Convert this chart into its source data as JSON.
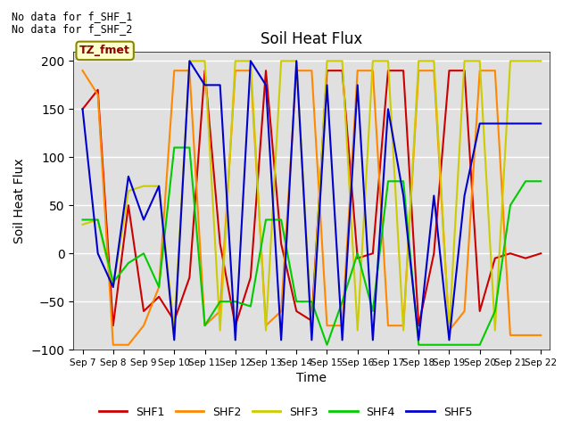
{
  "title": "Soil Heat Flux",
  "xlabel": "Time",
  "ylabel": "Soil Heat Flux",
  "ylim": [
    -100,
    210
  ],
  "background_color": "#e0e0e0",
  "note1": "No data for f_SHF_1",
  "note2": "No data for f_SHF_2",
  "tz_label": "TZ_fmet",
  "series": {
    "SHF1": {
      "color": "#cc0000",
      "x": [
        0,
        0.5,
        1,
        1.5,
        2,
        2.5,
        3,
        3.5,
        4,
        4.5,
        5,
        5.5,
        6,
        6.5,
        7,
        7.5,
        8,
        8.5,
        9,
        9.5,
        10,
        10.5,
        11,
        11.5,
        12,
        12.5,
        13,
        13.5,
        14,
        14.5,
        15
      ],
      "y": [
        150,
        170,
        -75,
        50,
        -60,
        -45,
        -70,
        -25,
        190,
        10,
        -75,
        -25,
        190,
        10,
        -60,
        -70,
        190,
        190,
        -5,
        0,
        190,
        190,
        -75,
        0,
        190,
        190,
        -60,
        -5,
        0,
        -5,
        0
      ]
    },
    "SHF2": {
      "color": "#ff8800",
      "x": [
        0,
        0.5,
        1,
        1.5,
        2,
        2.5,
        3,
        3.5,
        4,
        4.5,
        5,
        5.5,
        6,
        6.5,
        7,
        7.5,
        8,
        8.5,
        9,
        9.5,
        10,
        10.5,
        11,
        11.5,
        12,
        12.5,
        13,
        13.5,
        14,
        14.5,
        15
      ],
      "y": [
        190,
        165,
        -95,
        -95,
        -75,
        -35,
        190,
        190,
        -75,
        -60,
        190,
        190,
        -75,
        -60,
        190,
        190,
        -75,
        -75,
        190,
        190,
        -75,
        -75,
        190,
        190,
        -80,
        -60,
        190,
        190,
        -85,
        -85,
        -85
      ]
    },
    "SHF3": {
      "color": "#cccc00",
      "x": [
        0,
        0.5,
        1,
        1.5,
        2,
        2.5,
        3,
        3.5,
        4,
        4.5,
        5,
        5.5,
        6,
        6.5,
        7,
        7.5,
        8,
        8.5,
        9,
        9.5,
        10,
        10.5,
        11,
        11.5,
        12,
        12.5,
        13,
        13.5,
        14,
        14.5,
        15
      ],
      "y": [
        30,
        35,
        -35,
        65,
        70,
        70,
        -80,
        200,
        200,
        -80,
        200,
        200,
        -80,
        200,
        200,
        -80,
        200,
        200,
        -80,
        200,
        200,
        -80,
        200,
        200,
        -80,
        200,
        200,
        -80,
        200,
        200,
        200
      ]
    },
    "SHF4": {
      "color": "#00cc00",
      "x": [
        0,
        0.5,
        1,
        1.5,
        2,
        2.5,
        3,
        3.5,
        4,
        4.5,
        5,
        5.5,
        6,
        6.5,
        7,
        7.5,
        8,
        8.5,
        9,
        9.5,
        10,
        10.5,
        11,
        11.5,
        12,
        12.5,
        13,
        13.5,
        14,
        14.5,
        15
      ],
      "y": [
        35,
        35,
        -30,
        -10,
        0,
        -35,
        110,
        110,
        -75,
        -50,
        -50,
        -55,
        35,
        35,
        -50,
        -50,
        -95,
        -50,
        0,
        -60,
        75,
        75,
        -95,
        -95,
        -95,
        -95,
        -95,
        -60,
        50,
        75,
        75
      ]
    },
    "SHF5": {
      "color": "#0000cc",
      "x": [
        0,
        0.5,
        1,
        1.5,
        2,
        2.5,
        3,
        3.5,
        4,
        4.5,
        5,
        5.5,
        6,
        6.5,
        7,
        7.5,
        8,
        8.5,
        9,
        9.5,
        10,
        10.5,
        11,
        11.5,
        12,
        12.5,
        13,
        13.5,
        14,
        14.5,
        15
      ],
      "y": [
        150,
        0,
        -35,
        80,
        35,
        70,
        -90,
        200,
        175,
        175,
        -90,
        200,
        175,
        -90,
        200,
        -90,
        175,
        -90,
        175,
        -90,
        150,
        60,
        -90,
        60,
        -90,
        60,
        135,
        135,
        135,
        135,
        135
      ]
    }
  },
  "x_tick_labels": [
    "Sep 7",
    "Sep 8",
    "Sep 9",
    "Sep 10",
    "Sep 11",
    "Sep 12",
    "Sep 13",
    "Sep 14",
    "Sep 15",
    "Sep 16",
    "Sep 17",
    "Sep 18",
    "Sep 19",
    "Sep 20",
    "Sep 21",
    "Sep 22"
  ]
}
